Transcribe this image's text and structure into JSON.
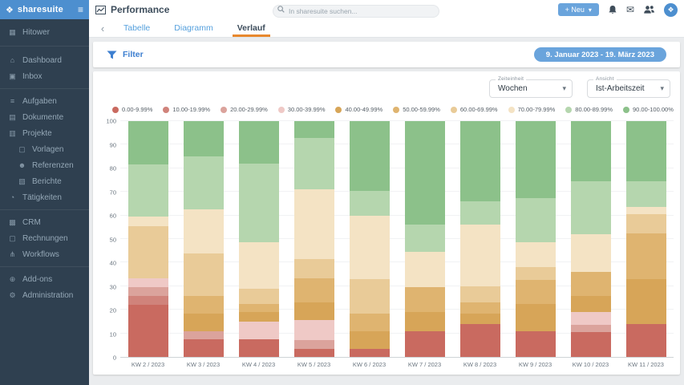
{
  "brand": {
    "name": "sharesuite",
    "accent": "#4d8fcf"
  },
  "icons": {
    "logo_glyph": "❖",
    "hamburger": "≡",
    "caret": "▾",
    "back": "‹",
    "mail": "✉",
    "map": {
      "building-icon": "▦",
      "home-icon": "⌂",
      "inbox-icon": "▣",
      "tasks-icon": "≡",
      "folder-icon": "▤",
      "projects-icon": "▥",
      "template-icon": "▢",
      "person-icon": "☻",
      "report-icon": "▧",
      "clock-icon": "◔",
      "crm-icon": "▩",
      "invoice-icon": "▢",
      "workflow-icon": "⋔",
      "addons-icon": "⊕",
      "admin-icon": "⚙"
    }
  },
  "topbar": {
    "title": "Performance",
    "search_placeholder": "In sharesuite suchen...",
    "new_button_label": "+ Neu"
  },
  "sidebar": {
    "workspace": {
      "label": "Hitower",
      "icon": "building-icon"
    },
    "groups": [
      {
        "items": [
          {
            "label": "Dashboard",
            "icon": "home-icon"
          },
          {
            "label": "Inbox",
            "icon": "inbox-icon"
          }
        ]
      },
      {
        "items": [
          {
            "label": "Aufgaben",
            "icon": "tasks-icon"
          },
          {
            "label": "Dokumente",
            "icon": "folder-icon"
          },
          {
            "label": "Projekte",
            "icon": "projects-icon"
          },
          {
            "label": "Vorlagen",
            "icon": "template-icon",
            "indent": true
          },
          {
            "label": "Referenzen",
            "icon": "person-icon",
            "indent": true
          },
          {
            "label": "Berichte",
            "icon": "report-icon",
            "indent": true
          },
          {
            "label": "Tätigkeiten",
            "icon": "clock-icon"
          }
        ]
      },
      {
        "items": [
          {
            "label": "CRM",
            "icon": "crm-icon"
          },
          {
            "label": "Rechnungen",
            "icon": "invoice-icon"
          },
          {
            "label": "Workflows",
            "icon": "workflow-icon"
          }
        ]
      },
      {
        "items": [
          {
            "label": "Add-ons",
            "icon": "addons-icon"
          },
          {
            "label": "Administration",
            "icon": "admin-icon"
          }
        ]
      }
    ]
  },
  "tabs": {
    "items": [
      {
        "label": "Tabelle",
        "active": false
      },
      {
        "label": "Diagramm",
        "active": false
      },
      {
        "label": "Verlauf",
        "active": true
      }
    ]
  },
  "filter_bar": {
    "label": "Filter",
    "date_range": "9. Januar 2023 - 19. März 2023"
  },
  "chart_controls": [
    {
      "label": "Zeiteinheit",
      "value": "Wochen"
    },
    {
      "label": "Ansicht",
      "value": "Ist-Arbeitszeit"
    }
  ],
  "chart_data": {
    "type": "bar",
    "stacked": true,
    "legend_position": "top",
    "grid": true,
    "ylim": [
      0,
      100
    ],
    "yticks": [
      0,
      10,
      20,
      30,
      40,
      50,
      60,
      70,
      80,
      90,
      100
    ],
    "categories": [
      "KW 2 / 2023",
      "KW 3 / 2023",
      "KW 4 / 2023",
      "KW 5 / 2023",
      "KW 6 / 2023",
      "KW 7 / 2023",
      "KW 8 / 2023",
      "KW 9 / 2023",
      "KW 10 / 2023",
      "KW 11 / 2023"
    ],
    "series": [
      {
        "name": "0.00-9.99%",
        "color": "#c96a60",
        "values": [
          22,
          7.5,
          7.5,
          3.5,
          3.5,
          11,
          14,
          11,
          10.5,
          14
        ]
      },
      {
        "name": "10.00-19.99%",
        "color": "#d0837b",
        "values": [
          4,
          0,
          0,
          0,
          0,
          0,
          0,
          0,
          0,
          0
        ]
      },
      {
        "name": "20.00-29.99%",
        "color": "#dba39c",
        "values": [
          3.5,
          3.5,
          0,
          3.5,
          0,
          0,
          0,
          0,
          3,
          0
        ]
      },
      {
        "name": "30.00-39.99%",
        "color": "#efc9c6",
        "values": [
          4,
          0,
          7.5,
          8.5,
          0,
          0,
          0,
          0,
          5.5,
          0
        ]
      },
      {
        "name": "40.00-49.99%",
        "color": "#d7a558",
        "values": [
          0,
          7.5,
          4,
          7.5,
          7.5,
          8,
          4.5,
          11.5,
          7,
          19
        ]
      },
      {
        "name": "50.00-59.99%",
        "color": "#dfb470",
        "values": [
          0,
          7.5,
          3.5,
          10.5,
          7.5,
          10.5,
          4.5,
          10,
          10,
          19.5
        ]
      },
      {
        "name": "60.00-69.99%",
        "color": "#e9cb98",
        "values": [
          22,
          18,
          6.5,
          8,
          14.5,
          0,
          7,
          5.5,
          0,
          8
        ]
      },
      {
        "name": "70.00-79.99%",
        "color": "#f4e3c4",
        "values": [
          4,
          18.5,
          19.5,
          29.5,
          27,
          15,
          26,
          10.5,
          16,
          3
        ]
      },
      {
        "name": "80.00-89.99%",
        "color": "#b5d6ae",
        "values": [
          22,
          22.5,
          33.5,
          22,
          10.5,
          11.5,
          10,
          19,
          22.5,
          11
        ]
      },
      {
        "name": "90.00-100.00%",
        "color": "#8cc18a",
        "values": [
          18.5,
          15,
          18,
          7,
          29.5,
          44,
          34,
          32.5,
          25.5,
          25.5
        ]
      }
    ]
  }
}
